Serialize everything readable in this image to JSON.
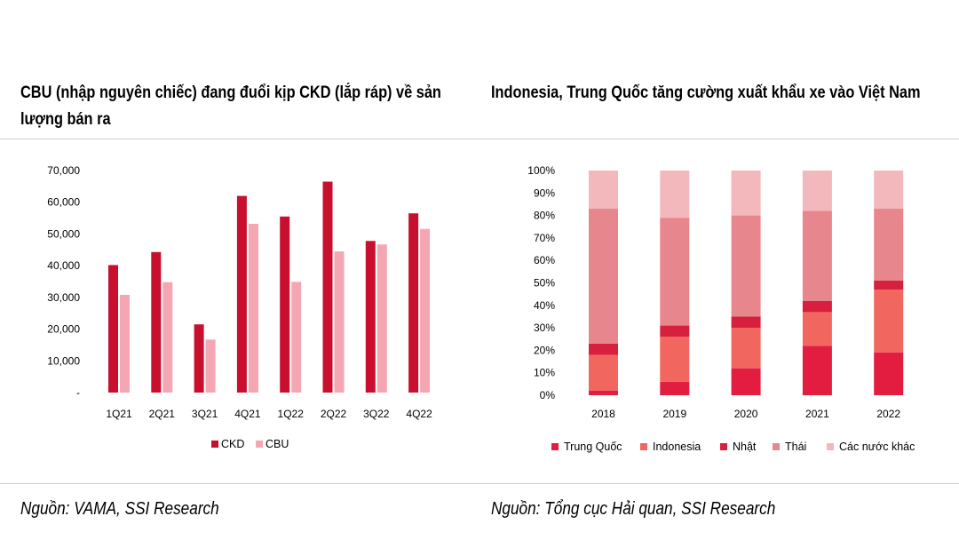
{
  "left_title_line1": "CBU (nhập nguyên chiếc) đang đuổi kịp CKD (lắp ráp) về sản",
  "left_title_line2": "lượng bán ra",
  "right_title": "Indonesia, Trung Quốc tăng cường xuất khẩu xe vào Việt Nam",
  "left_source": "Nguồn: VAMA, SSI Research",
  "right_source": "Nguồn: Tổng cục Hải quan, SSI Research",
  "chart_data": [
    {
      "type": "bar",
      "title": "CBU (nhập nguyên chiếc) đang đuổi kịp CKD (lắp ráp) về sản lượng bán ra",
      "categories": [
        "1Q21",
        "2Q21",
        "3Q21",
        "4Q21",
        "1Q22",
        "2Q22",
        "3Q22",
        "4Q22"
      ],
      "series": [
        {
          "name": "CKD",
          "color": "#c8102e",
          "values": [
            40200,
            44300,
            21500,
            62000,
            55500,
            66500,
            47800,
            56500
          ]
        },
        {
          "name": "CBU",
          "color": "#f4a7b3",
          "values": [
            30800,
            34800,
            16700,
            53200,
            34900,
            44500,
            46700,
            51600
          ]
        }
      ],
      "ylim": [
        0,
        70000
      ],
      "yticks": [
        "-",
        "10,000",
        "20,000",
        "30,000",
        "40,000",
        "50,000",
        "60,000",
        "70,000"
      ],
      "legend": "bottom",
      "grid": false
    },
    {
      "type": "bar",
      "stacked": true,
      "title": "Indonesia, Trung Quốc tăng cường xuất khẩu xe vào Việt Nam",
      "categories": [
        "2018",
        "2019",
        "2020",
        "2021",
        "2022"
      ],
      "series": [
        {
          "name": "Trung Quốc",
          "color": "#e21d3f",
          "values": [
            2,
            6,
            12,
            22,
            19
          ]
        },
        {
          "name": "Indonesia",
          "color": "#f26660",
          "values": [
            16,
            20,
            18,
            15,
            28
          ]
        },
        {
          "name": "Nhật",
          "color": "#d6203d",
          "values": [
            5,
            5,
            5,
            5,
            4
          ]
        },
        {
          "name": "Thái",
          "color": "#e8868e",
          "values": [
            60,
            48,
            45,
            40,
            32
          ]
        },
        {
          "name": "Các nước khác",
          "color": "#f2b8bc",
          "values": [
            17,
            21,
            20,
            18,
            17
          ]
        }
      ],
      "ylim": [
        0,
        100
      ],
      "yticks": [
        "0%",
        "10%",
        "20%",
        "30%",
        "40%",
        "50%",
        "60%",
        "70%",
        "80%",
        "90%",
        "100%"
      ],
      "legend": "bottom",
      "grid": false
    }
  ]
}
